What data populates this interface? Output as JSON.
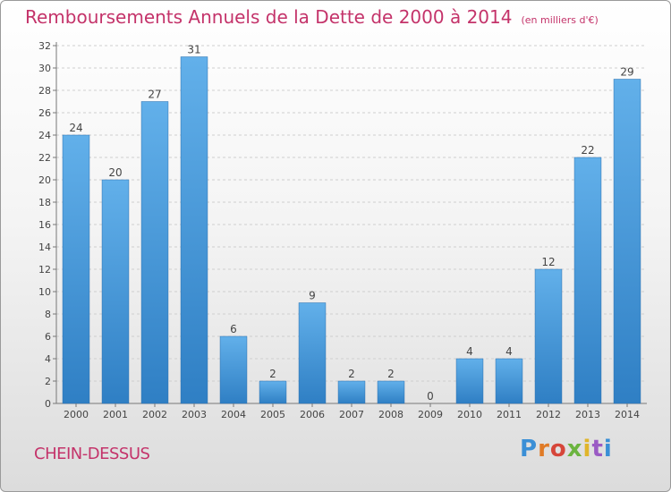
{
  "header": {
    "title": "Remboursements Annuels de la Dette de 2000 à 2014",
    "subtitle": "(en milliers d'€)"
  },
  "footer": {
    "commune": "CHEIN-DESSUS",
    "logo_text": "Proxiti"
  },
  "colors": {
    "title": "#c4336a",
    "bar_top": "#62b0ea",
    "bar_bottom": "#2f7fc4",
    "logo_letters": [
      "#3a8fd6",
      "#e07b27",
      "#d6463a",
      "#6bb43f",
      "#e0b52a",
      "#9a5bc4",
      "#3a8fd6"
    ]
  },
  "chart_data": {
    "type": "bar",
    "categories": [
      "2000",
      "2001",
      "2002",
      "2003",
      "2004",
      "2005",
      "2006",
      "2007",
      "2008",
      "2009",
      "2010",
      "2011",
      "2012",
      "2013",
      "2014"
    ],
    "values": [
      24,
      20,
      27,
      31,
      6,
      2,
      9,
      2,
      2,
      0,
      4,
      4,
      12,
      22,
      29
    ],
    "ylim": [
      0,
      32
    ],
    "yticks": [
      0,
      2,
      4,
      6,
      8,
      10,
      12,
      14,
      16,
      18,
      20,
      22,
      24,
      26,
      28,
      30,
      32
    ],
    "grid": true,
    "data_labels": true
  }
}
